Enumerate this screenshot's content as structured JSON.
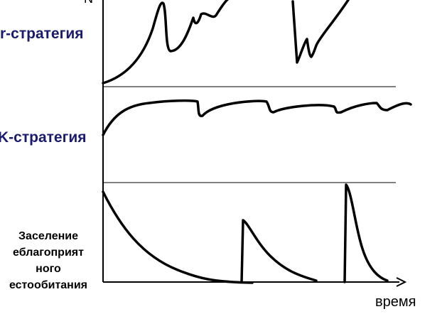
{
  "axis": {
    "y_label": "N",
    "x_label": "время"
  },
  "rows": [
    {
      "label": [
        "r-стратегия"
      ]
    },
    {
      "label": [
        "K-стратегия"
      ]
    },
    {
      "label": [
        "Заселение",
        "еблагоприят",
        "ного",
        "естообитания"
      ]
    }
  ]
}
